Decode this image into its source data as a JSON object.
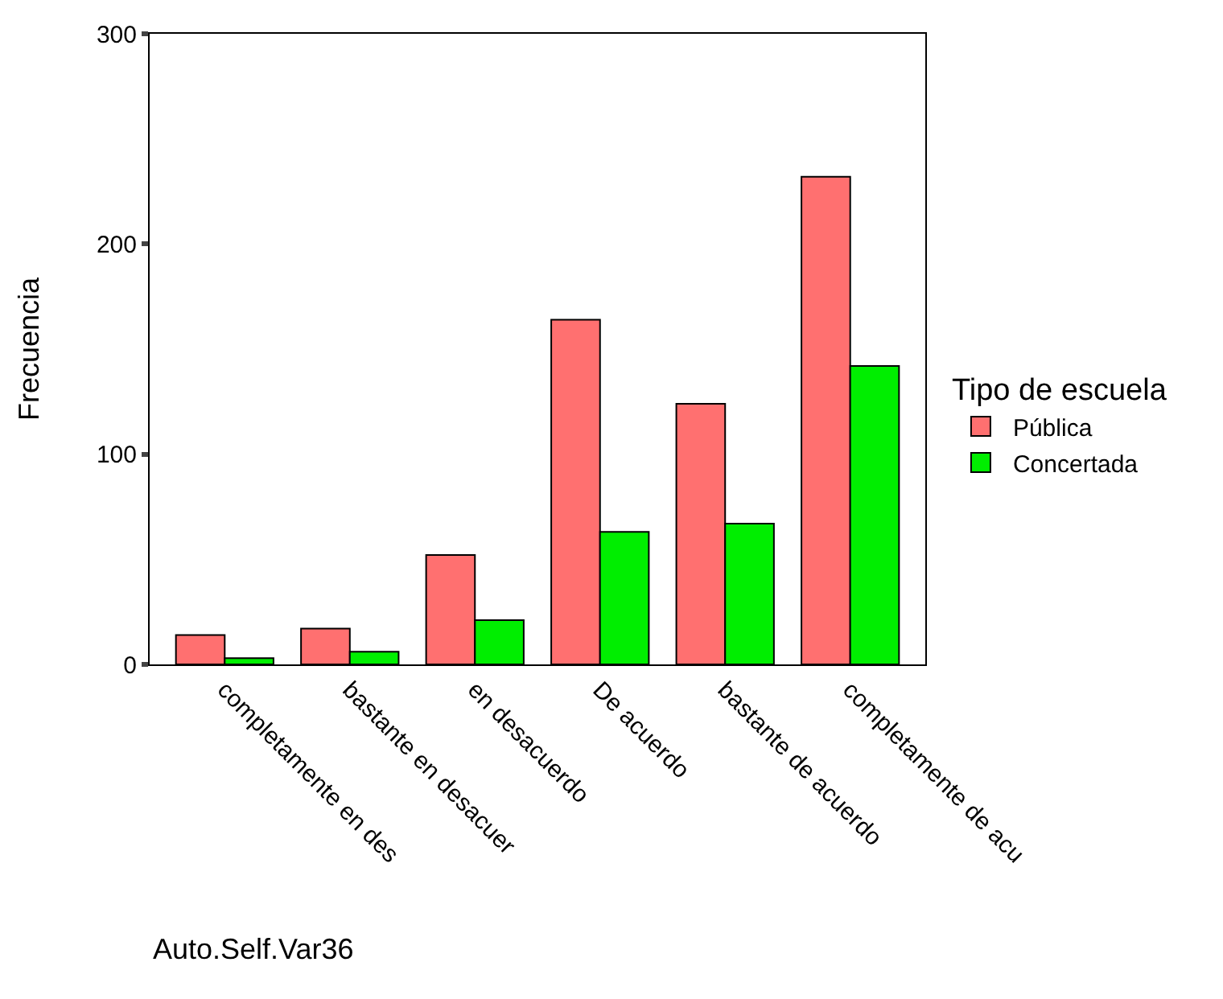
{
  "chart_data": {
    "type": "bar",
    "xlabel": "Auto.Self.Var36",
    "ylabel": "Frecuencia",
    "legend_title": "Tipo de escuela",
    "categories": [
      "completamente en des",
      "bastante en desacuer",
      "en desacuerdo",
      "De acuerdo",
      "bastante de acuerdo",
      "completamente de acu"
    ],
    "series": [
      {
        "name": "Pública",
        "color": "#ff7070",
        "values": [
          14,
          17,
          52,
          164,
          124,
          232
        ]
      },
      {
        "name": "Concertada",
        "color": "#00ee00",
        "values": [
          3,
          6,
          21,
          63,
          67,
          142
        ]
      }
    ],
    "ylim": [
      0,
      300
    ],
    "yticks": [
      0,
      100,
      200,
      300
    ],
    "legend": "right"
  }
}
